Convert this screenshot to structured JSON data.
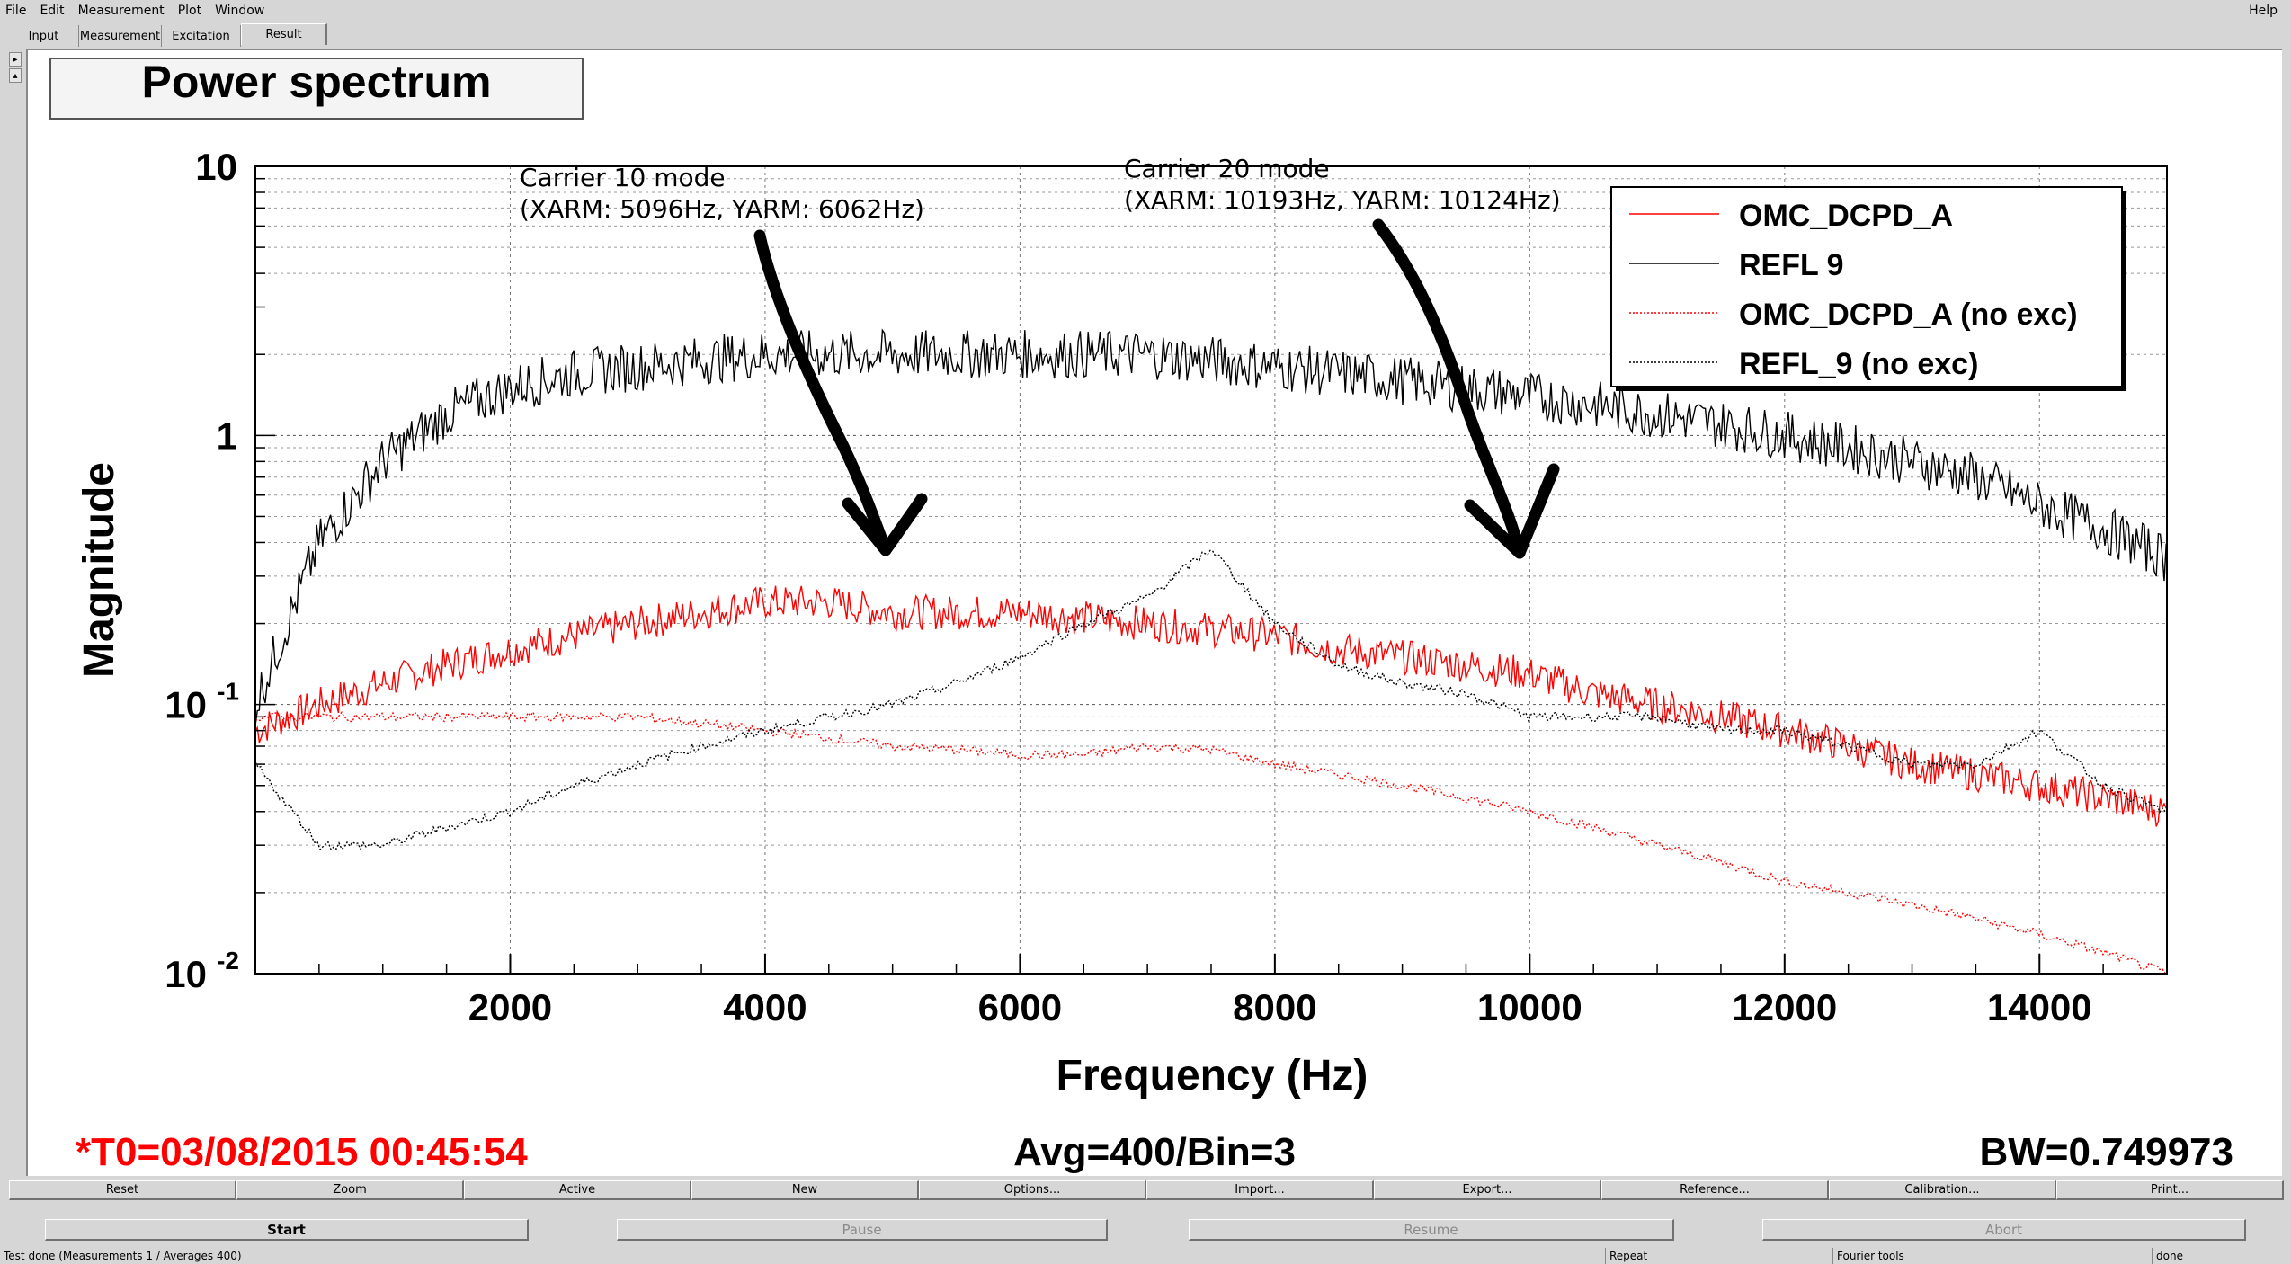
{
  "menu": [
    "File",
    "Edit",
    "Measurement",
    "Plot",
    "Window"
  ],
  "menu_help": "Help",
  "tabs": [
    "Input",
    "Measurement",
    "Excitation",
    "Result"
  ],
  "active_tab": "Result",
  "plot": {
    "title": "Power spectrum",
    "annotations": [
      {
        "line1": "Carrier 10 mode",
        "line2": "(XARM: 5096Hz, YARM: 6062Hz)"
      },
      {
        "line1": "Carrier 20 mode",
        "line2": "(XARM: 10193Hz, YARM: 10124Hz)"
      }
    ],
    "info_time": "*T0=03/08/2015 00:45:54",
    "info_avg": "Avg=400/Bin=3",
    "info_bw": "BW=0.749973"
  },
  "chart_data": {
    "type": "line",
    "xlabel": "Frequency (Hz)",
    "ylabel": "Magnitude",
    "xlim": [
      0,
      15000
    ],
    "ylim": [
      0.01,
      10
    ],
    "yscale": "log",
    "xticks": [
      2000,
      4000,
      6000,
      8000,
      10000,
      12000,
      14000
    ],
    "xtick_labels": [
      "2000",
      "4000",
      "6000",
      "8000",
      "10000",
      "12000",
      "14000"
    ],
    "ytick_labels": [
      {
        "base": "10",
        "exp": "-2",
        "value": 0.01
      },
      {
        "base": "10",
        "exp": "-1",
        "value": 0.1
      },
      {
        "base": "1",
        "exp": "",
        "value": 1
      },
      {
        "base": "10",
        "exp": "",
        "value": 10
      }
    ],
    "grid": true,
    "legend_position": "top-right",
    "series": [
      {
        "name": "OMC_DCPD_A",
        "color": "#ff0000",
        "style": "solid",
        "x": [
          0,
          500,
          1000,
          1500,
          2000,
          2500,
          3000,
          3500,
          4000,
          4500,
          5000,
          5500,
          6000,
          6500,
          7000,
          7500,
          8000,
          8500,
          9000,
          9500,
          10000,
          10500,
          11000,
          11500,
          12000,
          12500,
          13000,
          13500,
          14000,
          14500,
          15000
        ],
        "y": [
          0.08,
          0.1,
          0.12,
          0.14,
          0.16,
          0.18,
          0.2,
          0.22,
          0.24,
          0.24,
          0.22,
          0.22,
          0.22,
          0.21,
          0.2,
          0.19,
          0.18,
          0.16,
          0.15,
          0.14,
          0.13,
          0.11,
          0.1,
          0.09,
          0.08,
          0.07,
          0.06,
          0.055,
          0.05,
          0.045,
          0.04
        ]
      },
      {
        "name": "REFL 9",
        "color": "#000000",
        "style": "solid",
        "x": [
          0,
          500,
          1000,
          1500,
          2000,
          2500,
          3000,
          3500,
          4000,
          4500,
          5000,
          5500,
          6000,
          6500,
          7000,
          7500,
          8000,
          8500,
          9000,
          9500,
          10000,
          10500,
          11000,
          11500,
          12000,
          12500,
          13000,
          13500,
          14000,
          14500,
          15000
        ],
        "y": [
          0.1,
          0.4,
          0.8,
          1.2,
          1.5,
          1.7,
          1.8,
          1.9,
          2.0,
          2.0,
          2.0,
          2.0,
          2.0,
          2.0,
          2.0,
          1.9,
          1.8,
          1.7,
          1.6,
          1.5,
          1.4,
          1.3,
          1.2,
          1.1,
          1.0,
          0.9,
          0.8,
          0.7,
          0.55,
          0.45,
          0.35
        ]
      },
      {
        "name": "OMC_DCPD_A (no exc)",
        "color": "#ff0000",
        "style": "dotted",
        "x": [
          0,
          500,
          1000,
          1500,
          2000,
          2500,
          3000,
          3500,
          4000,
          4500,
          5000,
          5500,
          6000,
          6500,
          7000,
          7500,
          8000,
          8500,
          9000,
          9500,
          10000,
          10500,
          11000,
          11500,
          12000,
          12500,
          13000,
          13500,
          14000,
          14500,
          15000
        ],
        "y": [
          0.09,
          0.09,
          0.09,
          0.09,
          0.09,
          0.09,
          0.09,
          0.085,
          0.08,
          0.075,
          0.07,
          0.068,
          0.065,
          0.065,
          0.07,
          0.068,
          0.06,
          0.055,
          0.05,
          0.045,
          0.04,
          0.035,
          0.03,
          0.026,
          0.022,
          0.02,
          0.018,
          0.016,
          0.014,
          0.012,
          0.01
        ]
      },
      {
        "name": "REFL_9 (no exc)",
        "color": "#000000",
        "style": "dotted",
        "x": [
          0,
          500,
          1000,
          1500,
          2000,
          2500,
          3000,
          3500,
          4000,
          4500,
          5000,
          5500,
          6000,
          6500,
          7000,
          7500,
          8000,
          8500,
          9000,
          9500,
          10000,
          10500,
          11000,
          11500,
          12000,
          12500,
          13000,
          13500,
          14000,
          14500,
          15000
        ],
        "y": [
          0.06,
          0.03,
          0.03,
          0.035,
          0.04,
          0.05,
          0.06,
          0.07,
          0.08,
          0.09,
          0.1,
          0.12,
          0.15,
          0.2,
          0.25,
          0.38,
          0.2,
          0.14,
          0.12,
          0.11,
          0.09,
          0.09,
          0.09,
          0.08,
          0.08,
          0.07,
          0.06,
          0.06,
          0.08,
          0.05,
          0.04
        ]
      }
    ]
  },
  "buttons_row1": [
    "Reset",
    "Zoom",
    "Active",
    "New",
    "Options...",
    "Import...",
    "Export...",
    "Reference...",
    "Calibration...",
    "Print..."
  ],
  "controls": {
    "start": "Start",
    "pause": "Pause",
    "resume": "Resume",
    "abort": "Abort"
  },
  "status": {
    "main": "Test done (Measurements 1 / Averages 400)",
    "repeat": "Repeat",
    "tools": "Fourier tools",
    "state": "done"
  }
}
